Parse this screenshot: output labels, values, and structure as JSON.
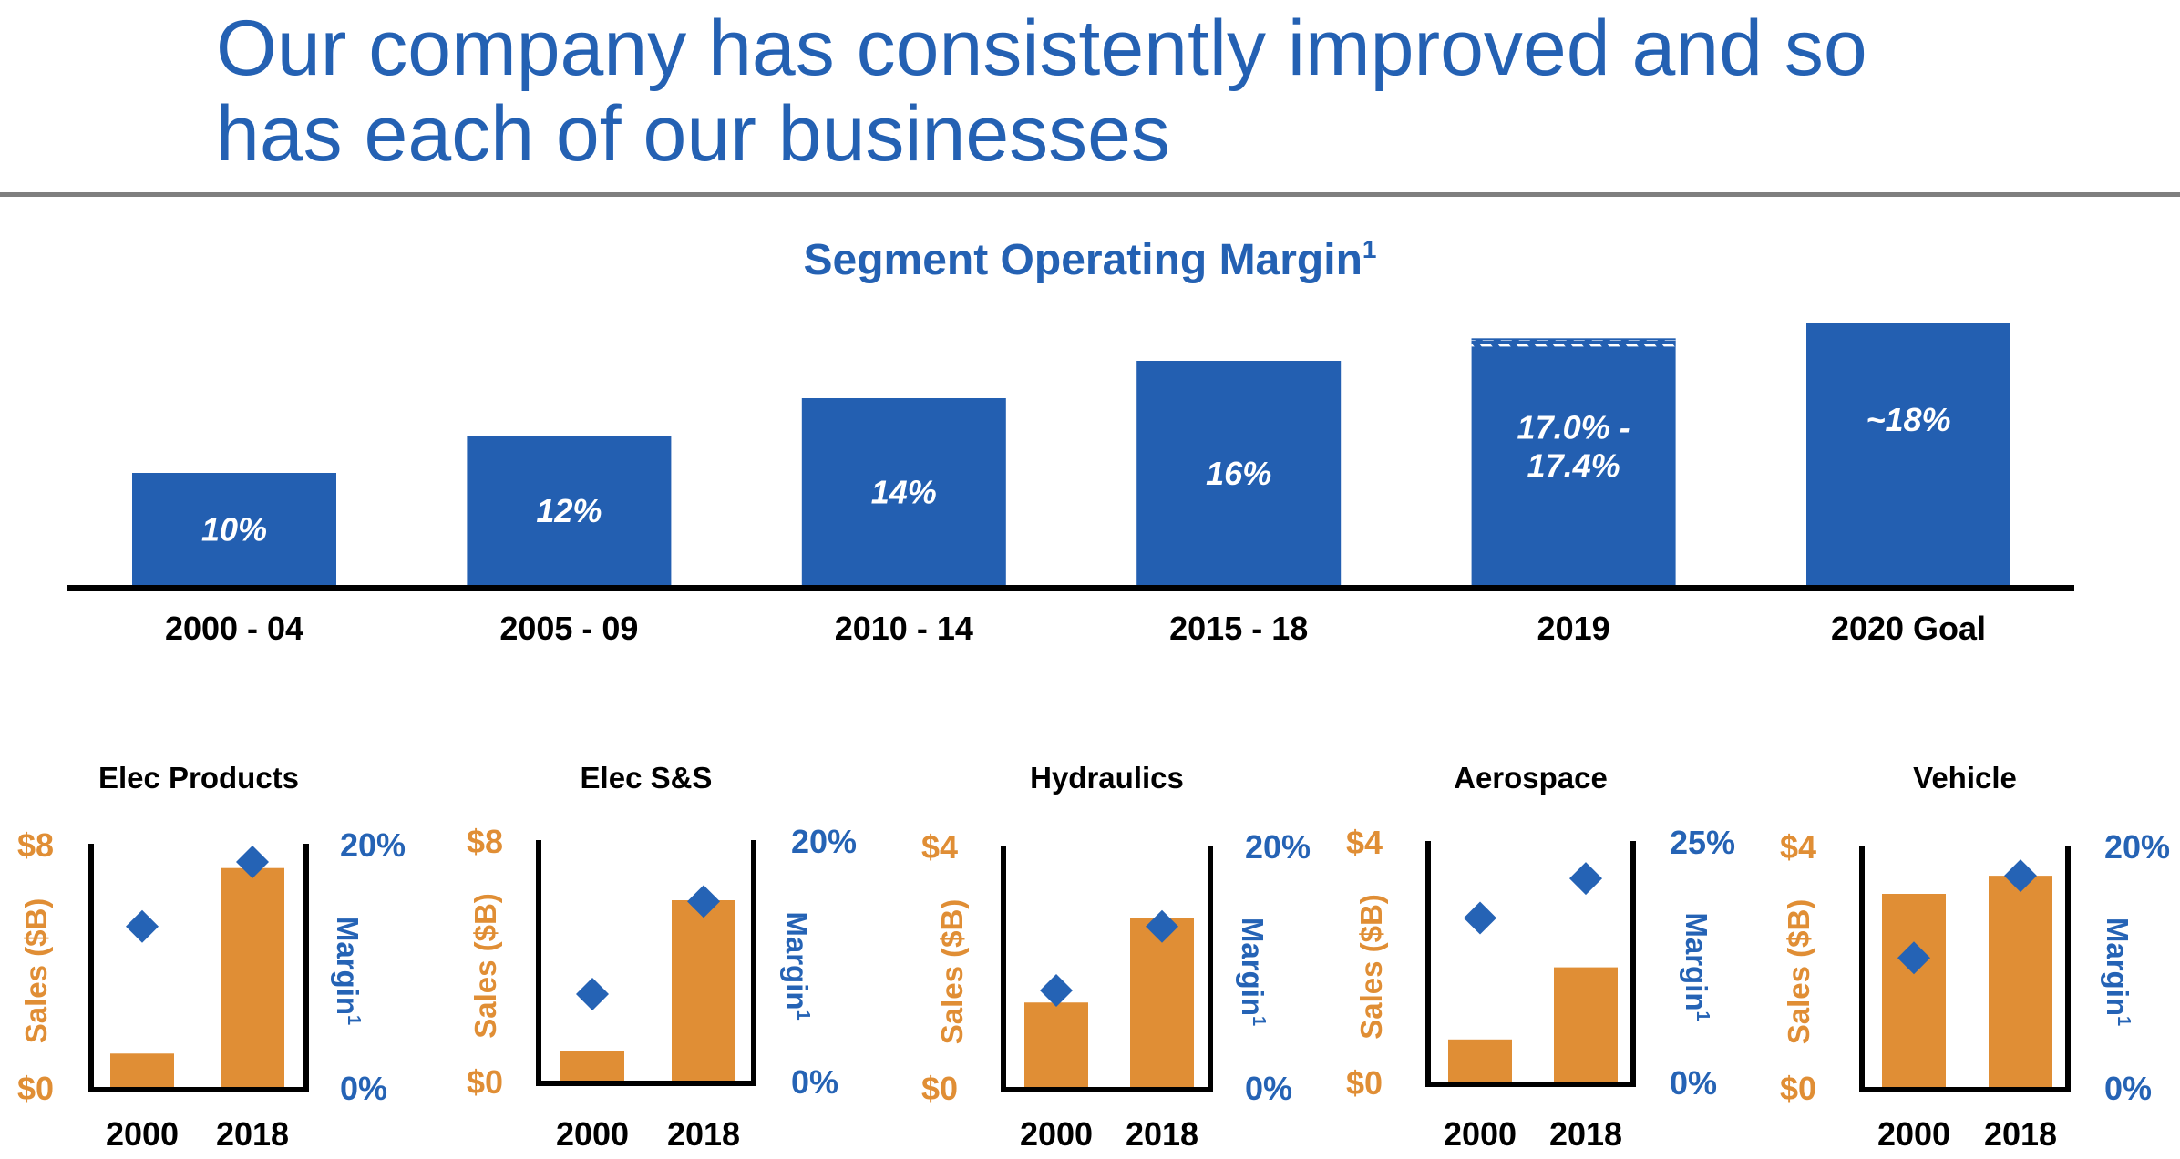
{
  "slide": {
    "title_lines": [
      "Our company has consistently improved and so",
      "has each of our businesses"
    ]
  },
  "colors": {
    "title_blue": "#2461B3",
    "bar_blue": "#235FB1",
    "diamond_blue": "#2563B5",
    "sales_orange": "#E08E35",
    "axis_black": "#000000",
    "divider_gray": "#7F7F7F"
  },
  "chart_data": [
    {
      "type": "bar",
      "title": "Segment Operating Margin",
      "title_superscript": "1",
      "categories": [
        "2000 - 04",
        "2005 - 09",
        "2010 - 14",
        "2015 - 18",
        "2019",
        "2020 Goal"
      ],
      "values": [
        10,
        12,
        14,
        16,
        17.2,
        18
      ],
      "value_labels": [
        [
          "10%"
        ],
        [
          "12%"
        ],
        [
          "14%"
        ],
        [
          "16%"
        ],
        [
          "17.0% -",
          "17.4%"
        ],
        [
          "~18%"
        ]
      ],
      "ranges": [
        null,
        null,
        null,
        null,
        [
          17.0,
          17.4
        ],
        null
      ],
      "xlabel": "",
      "ylabel": "",
      "ylim": [
        4,
        20
      ],
      "grid": false,
      "legend": "none"
    },
    {
      "type": "bar+scatter",
      "panels": [
        {
          "title": "Elec Products",
          "categories": [
            "2000",
            "2018"
          ],
          "sales_label": "Sales ($B)",
          "margin_label": "Margin",
          "margin_superscript": "1",
          "sales_ticks": [
            "$0",
            "$8"
          ],
          "margin_ticks": [
            "0%",
            "20%"
          ],
          "sales_ylim": [
            0,
            8
          ],
          "margin_ylim": [
            0,
            20
          ],
          "series": [
            {
              "name": "Sales ($B)",
              "type": "bar",
              "values": [
                1.1,
                7.2
              ]
            },
            {
              "name": "Margin",
              "type": "scatter",
              "values": [
                13.2,
                18.5
              ]
            }
          ]
        },
        {
          "title": "Elec S&S",
          "categories": [
            "2000",
            "2018"
          ],
          "sales_label": "Sales ($B)",
          "margin_label": "Margin",
          "margin_superscript": "1",
          "sales_ticks": [
            "$0",
            "$8"
          ],
          "margin_ticks": [
            "0%",
            "20%"
          ],
          "sales_ylim": [
            0,
            8
          ],
          "margin_ylim": [
            0,
            20
          ],
          "series": [
            {
              "name": "Sales ($B)",
              "type": "bar",
              "values": [
                1.0,
                6.0
              ]
            },
            {
              "name": "Margin",
              "type": "scatter",
              "values": [
                7.2,
                14.9
              ]
            }
          ]
        },
        {
          "title": "Hydraulics",
          "categories": [
            "2000",
            "2018"
          ],
          "sales_label": "Sales ($B)",
          "margin_label": "Margin",
          "margin_superscript": "1",
          "sales_ticks": [
            "$0",
            "$4"
          ],
          "margin_ticks": [
            "0%",
            "20%"
          ],
          "sales_ylim": [
            0,
            4
          ],
          "margin_ylim": [
            0,
            20
          ],
          "series": [
            {
              "name": "Sales ($B)",
              "type": "bar",
              "values": [
                1.4,
                2.8
              ]
            },
            {
              "name": "Margin",
              "type": "scatter",
              "values": [
                8.0,
                13.3
              ]
            }
          ]
        },
        {
          "title": "Aerospace",
          "categories": [
            "2000",
            "2018"
          ],
          "sales_label": "Sales ($B)",
          "margin_label": "Margin",
          "margin_superscript": "1",
          "sales_ticks": [
            "$0",
            "$4"
          ],
          "margin_ticks": [
            "0%",
            "25%"
          ],
          "sales_ylim": [
            0,
            4
          ],
          "margin_ylim": [
            0,
            25
          ],
          "series": [
            {
              "name": "Sales ($B)",
              "type": "bar",
              "values": [
                0.7,
                1.9
              ]
            },
            {
              "name": "Margin",
              "type": "scatter",
              "values": [
                17.0,
                21.1
              ]
            }
          ]
        },
        {
          "title": "Vehicle",
          "categories": [
            "2000",
            "2018"
          ],
          "sales_label": "Sales ($B)",
          "margin_label": "Margin",
          "margin_superscript": "1",
          "sales_ticks": [
            "$0",
            "$4"
          ],
          "margin_ticks": [
            "0%",
            "20%"
          ],
          "sales_ylim": [
            0,
            4
          ],
          "margin_ylim": [
            0,
            20
          ],
          "series": [
            {
              "name": "Sales ($B)",
              "type": "bar",
              "values": [
                3.2,
                3.5
              ]
            },
            {
              "name": "Margin",
              "type": "scatter",
              "values": [
                10.7,
                17.5
              ]
            }
          ]
        }
      ]
    }
  ]
}
